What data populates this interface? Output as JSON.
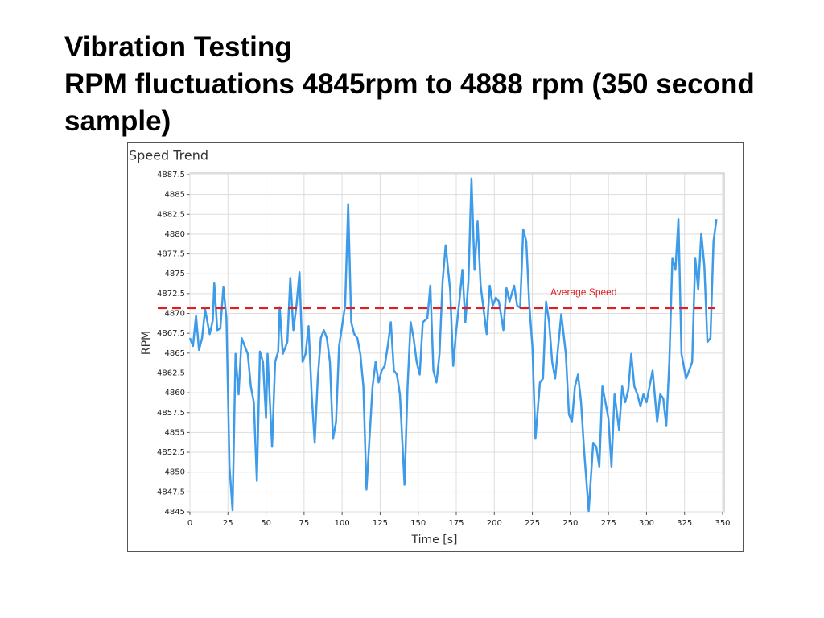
{
  "slide": {
    "title": "Vibration Testing",
    "subtitle": "RPM fluctuations 4845rpm to 4888 rpm (350 second sample)"
  },
  "chart_data": {
    "type": "line",
    "title": "Speed Trend",
    "x_label": "Time [s]",
    "y_label": "RPM",
    "xlim": [
      0,
      350
    ],
    "ylim": [
      4845,
      4887.5
    ],
    "xticks": [
      0,
      25,
      50,
      75,
      100,
      125,
      150,
      175,
      200,
      225,
      250,
      275,
      300,
      325,
      350
    ],
    "yticks": [
      4845,
      4847.5,
      4850,
      4852.5,
      4855,
      4857.5,
      4860,
      4862.5,
      4865,
      4867.5,
      4870,
      4872.5,
      4875,
      4877.5,
      4880,
      4882.5,
      4885,
      4887.5
    ],
    "grid": true,
    "series": [
      {
        "color": "#3d9be9",
        "x": [
          0,
          2,
          4,
          6,
          8,
          10,
          13,
          15,
          16,
          18,
          20,
          22,
          24,
          26,
          28,
          30,
          32,
          34,
          36,
          38,
          40,
          42,
          44,
          46,
          48,
          50,
          51,
          54,
          56,
          58,
          59,
          61,
          64,
          66,
          68,
          70,
          72,
          74,
          76,
          78,
          80,
          82,
          84,
          86,
          88,
          90,
          92,
          94,
          96,
          98,
          100,
          102,
          104,
          106,
          108,
          110,
          112,
          114,
          116,
          120,
          122,
          124,
          126,
          128,
          130,
          132,
          134,
          136,
          138,
          141,
          143,
          145,
          147,
          149,
          151,
          153,
          156,
          158,
          160,
          162,
          164,
          166,
          168,
          171,
          173,
          175,
          177,
          179,
          181,
          183,
          185,
          187,
          189,
          191,
          193,
          195,
          197,
          199,
          201,
          203,
          206,
          208,
          210,
          213,
          215,
          217,
          219,
          221,
          223,
          225,
          227,
          230,
          232,
          234,
          236,
          238,
          240,
          242,
          244,
          247,
          249,
          251,
          253,
          255,
          257,
          259,
          262,
          265,
          267,
          269,
          271,
          273,
          275,
          277,
          279,
          282,
          284,
          286,
          288,
          290,
          292,
          294,
          296,
          298,
          300,
          302,
          304,
          307,
          309,
          311,
          313,
          315,
          317,
          319,
          321,
          323,
          326,
          328,
          330,
          332,
          334,
          336,
          338,
          340,
          342,
          344,
          346
        ],
        "values": [
          4866.9,
          4865.9,
          4869.7,
          4865.4,
          4866.9,
          4870.5,
          4867.4,
          4869.1,
          4873.8,
          4867.9,
          4868.1,
          4873.3,
          4869.4,
          4850.7,
          4845.2,
          4864.9,
          4859.8,
          4866.9,
          4865.9,
          4864.9,
          4860.8,
          4858.8,
          4848.9,
          4865.2,
          4863.9,
          4856.8,
          4864.9,
          4853.2,
          4863.9,
          4865.2,
          4870.8,
          4864.9,
          4866.4,
          4874.5,
          4867.9,
          4871.0,
          4875.2,
          4863.9,
          4864.9,
          4868.4,
          4859.8,
          4853.7,
          4861.8,
          4866.9,
          4867.9,
          4866.9,
          4863.9,
          4854.2,
          4856.3,
          4865.9,
          4868.4,
          4871.0,
          4883.8,
          4868.9,
          4867.4,
          4866.9,
          4864.9,
          4860.8,
          4847.8,
          4860.8,
          4863.9,
          4861.3,
          4862.8,
          4863.4,
          4865.9,
          4868.9,
          4862.8,
          4862.3,
          4859.8,
          4848.4,
          4860.8,
          4868.9,
          4866.9,
          4863.9,
          4862.3,
          4868.9,
          4869.4,
          4873.5,
          4862.8,
          4861.3,
          4864.9,
          4874.0,
          4878.6,
          4873.0,
          4863.4,
          4867.9,
          4871.5,
          4875.5,
          4868.9,
          4874.0,
          4887.0,
          4875.5,
          4881.6,
          4873.5,
          4870.5,
          4867.4,
          4873.5,
          4871.0,
          4872.0,
          4871.5,
          4867.9,
          4873.2,
          4871.5,
          4873.5,
          4871.0,
          4870.7,
          4880.6,
          4879.1,
          4871.0,
          4865.9,
          4854.2,
          4861.3,
          4861.8,
          4871.5,
          4868.9,
          4863.9,
          4861.8,
          4865.9,
          4869.9,
          4864.9,
          4857.3,
          4856.3,
          4860.8,
          4862.3,
          4858.8,
          4852.7,
          4845.1,
          4853.7,
          4853.2,
          4850.7,
          4860.8,
          4858.8,
          4856.8,
          4850.7,
          4859.8,
          4855.3,
          4860.8,
          4858.8,
          4860.3,
          4864.9,
          4860.8,
          4859.8,
          4858.3,
          4859.8,
          4858.8,
          4860.8,
          4862.8,
          4856.3,
          4859.8,
          4859.3,
          4855.8,
          4863.9,
          4877.0,
          4875.5,
          4881.9,
          4864.9,
          4861.8,
          4862.8,
          4863.9,
          4877.0,
          4873.0,
          4880.1,
          4876.0,
          4866.4,
          4866.9,
          4879.1,
          4881.9
        ]
      }
    ],
    "reference_line": {
      "label": "Average Speed",
      "value": 4870.7,
      "color": "#e02020"
    }
  }
}
